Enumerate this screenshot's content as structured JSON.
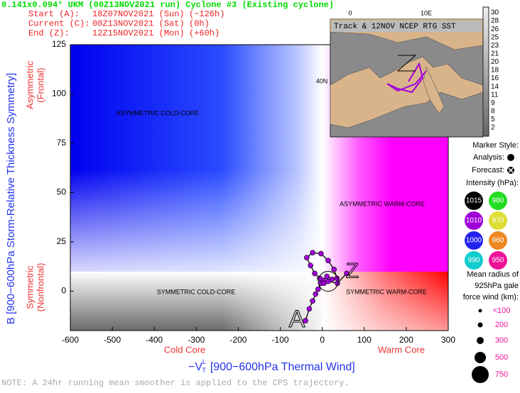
{
  "chart_data": {
    "type": "line",
    "title": "0.141x0.094° UKM (00Z13NOV2021 run) Cyclone #3 (Existing cyclone)",
    "time_rows": [
      [
        "Start (A):",
        "18Z07NOV2021 (Sun)",
        "(−126h)"
      ],
      [
        "Current (C):",
        "00Z13NOV2021 (Sat)",
        "(0h)"
      ],
      [
        "End (Z):",
        "12Z15NOV2021 (Mon)",
        "(+60h)"
      ]
    ],
    "y_label": "B [900−600hPa Storm-Relative Thickness Symmetry]",
    "y_upper_label": [
      "Asymmetric",
      "(Frontal)"
    ],
    "y_lower_label": [
      "Symmetric",
      "(Nonfrontal)"
    ],
    "x_label": {
      "symbol": "−V",
      "sub": "T",
      "sup": "L",
      "text": "[900−600hPa Thermal Wind]"
    },
    "x_left_label": "Cold Core",
    "x_right_label": "Warm Core",
    "note": "NOTE:  A 24hr running mean smoother is applied to the CPS trajectory.",
    "regions": [
      "ASYMMETRIC COLD-CORE",
      "ASYMMETRIC WARM-CORE",
      "SYMMETRIC COLD-CORE",
      "SYMMETRIC WARM-CORE"
    ],
    "xlim": [
      -600,
      300
    ],
    "ylim": [
      -20,
      125
    ],
    "xticks": [
      -600,
      -500,
      -400,
      -300,
      -200,
      -100,
      0,
      100,
      200,
      300
    ],
    "yticks": [
      0,
      25,
      50,
      75,
      100,
      125
    ],
    "x": [
      -40,
      -31,
      -23,
      -16,
      -10,
      -3,
      2,
      11,
      23,
      35,
      28,
      14,
      -3,
      -23,
      -37,
      -28,
      -18,
      -6,
      4,
      14,
      36,
      58
    ],
    "values": [
      -15,
      -9,
      -5,
      -1.5,
      1,
      4,
      5.5,
      7.5,
      6,
      6.5,
      11,
      15.5,
      19,
      19.5,
      17,
      13,
      9,
      6.5,
      4,
      5,
      4,
      9
    ],
    "color": "#a000d8",
    "start_marker": "A",
    "end_marker": "Z",
    "legend": {
      "marker_title": "Marker Style:",
      "analysis": "Analysis:",
      "forecast": "Forecast:",
      "intensity_title": "Intensity (hPa):",
      "intensity": [
        {
          "label": "1015",
          "color": "#000000"
        },
        {
          "label": "980",
          "color": "#22dd22"
        },
        {
          "label": "1010",
          "color": "#a000d8"
        },
        {
          "label": "970",
          "color": "#dddd33"
        },
        {
          "label": "1000",
          "color": "#2222ee"
        },
        {
          "label": "960",
          "color": "#ee8822"
        },
        {
          "label": "990",
          "color": "#11cccc"
        },
        {
          "label": "950",
          "color": "#ee1199"
        }
      ],
      "radius_title": [
        "Mean radius of",
        "925hPa gale",
        "force wind (km):"
      ],
      "radius": [
        "<100",
        "200",
        "300",
        "500",
        "750"
      ]
    },
    "inset": {
      "title": "Track & 12NOV NCEP RTG SST",
      "lon_labels": [
        "0",
        "10E"
      ],
      "lat_label": "40N",
      "colorbar": [
        30,
        28,
        26,
        25,
        23,
        21,
        20,
        18,
        16,
        14,
        11,
        9,
        8,
        5,
        2
      ]
    }
  }
}
